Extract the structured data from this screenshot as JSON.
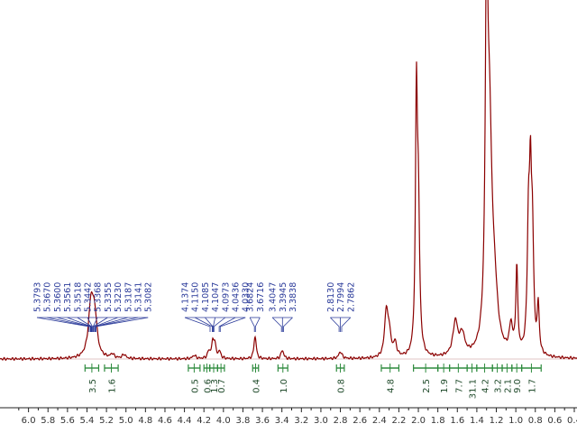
{
  "chart_data": {
    "type": "line",
    "title": "",
    "xlabel": "",
    "ylabel": "",
    "x_reversed": true,
    "xlim": [
      6.2,
      0.4
    ],
    "x_ticks": [
      "6.0",
      "5.8",
      "5.6",
      "5.4",
      "5.2",
      "5.0",
      "4.8",
      "4.6",
      "4.4",
      "4.2",
      "4.0",
      "3.8",
      "3.6",
      "3.4",
      "3.2",
      "3.0",
      "2.8",
      "2.6",
      "2.4",
      "2.2",
      "2.0",
      "1.8",
      "1.6",
      "1.4",
      "1.2",
      "1.0",
      "0.8",
      "0.6",
      "0.4"
    ],
    "ylim": [
      0,
      1
    ],
    "grid": false,
    "colors": {
      "spectrum": "#8b0000",
      "peak_labels": "#2b3b9a",
      "integrals": "#2e8b3e",
      "baseline": "#bbbbbb"
    },
    "spectrum_peaks": [
      {
        "x": 5.36,
        "height": 0.14,
        "width": 0.03
      },
      {
        "x": 5.33,
        "height": 0.09,
        "width": 0.03
      },
      {
        "x": 5.31,
        "height": 0.04,
        "width": 0.02
      },
      {
        "x": 5.14,
        "height": 0.012,
        "width": 0.02
      },
      {
        "x": 5.02,
        "height": 0.012,
        "width": 0.02
      },
      {
        "x": 4.3,
        "height": 0.01,
        "width": 0.02
      },
      {
        "x": 4.15,
        "height": 0.02,
        "width": 0.015
      },
      {
        "x": 4.11,
        "height": 0.04,
        "width": 0.015
      },
      {
        "x": 4.09,
        "height": 0.04,
        "width": 0.015
      },
      {
        "x": 4.04,
        "height": 0.02,
        "width": 0.015
      },
      {
        "x": 3.68,
        "height": 0.04,
        "width": 0.012
      },
      {
        "x": 3.67,
        "height": 0.035,
        "width": 0.012
      },
      {
        "x": 3.4,
        "height": 0.015,
        "width": 0.015
      },
      {
        "x": 3.39,
        "height": 0.012,
        "width": 0.015
      },
      {
        "x": 2.8,
        "height": 0.02,
        "width": 0.02
      },
      {
        "x": 2.33,
        "height": 0.13,
        "width": 0.02
      },
      {
        "x": 2.3,
        "height": 0.07,
        "width": 0.02
      },
      {
        "x": 2.24,
        "height": 0.04,
        "width": 0.02
      },
      {
        "x": 2.02,
        "height": 0.72,
        "width": 0.012
      },
      {
        "x": 2.0,
        "height": 0.4,
        "width": 0.015
      },
      {
        "x": 1.62,
        "height": 0.1,
        "width": 0.03
      },
      {
        "x": 1.55,
        "height": 0.06,
        "width": 0.03
      },
      {
        "x": 1.3,
        "height": 1.0,
        "width": 0.015
      },
      {
        "x": 1.27,
        "height": 0.6,
        "width": 0.03
      },
      {
        "x": 1.22,
        "height": 0.15,
        "width": 0.04
      },
      {
        "x": 1.05,
        "height": 0.08,
        "width": 0.02
      },
      {
        "x": 0.99,
        "height": 0.25,
        "width": 0.012
      },
      {
        "x": 0.87,
        "height": 0.36,
        "width": 0.015
      },
      {
        "x": 0.85,
        "height": 0.4,
        "width": 0.012
      },
      {
        "x": 0.83,
        "height": 0.33,
        "width": 0.015
      },
      {
        "x": 0.77,
        "height": 0.14,
        "width": 0.012
      }
    ],
    "peak_labels": [
      {
        "group": 1,
        "values": [
          "5.3793",
          "5.3670",
          "5.3600",
          "5.3561",
          "5.3518",
          "5.3442",
          "5.3368",
          "5.3355",
          "5.3230",
          "5.3187",
          "5.3141",
          "5.3082"
        ]
      },
      {
        "group": 2,
        "values": [
          "4.1374",
          "4.1150",
          "4.1085",
          "4.1047",
          "4.0973",
          "4.0436",
          "4.0330"
        ]
      },
      {
        "group": 3,
        "values": [
          "3.6824",
          "3.6716"
        ]
      },
      {
        "group": 4,
        "values": [
          "3.4047",
          "3.3945",
          "3.3838"
        ]
      },
      {
        "group": 5,
        "values": [
          "2.8130",
          "2.7994",
          "2.7862"
        ]
      }
    ],
    "integrals": [
      {
        "from": 5.42,
        "to": 5.28,
        "value": "3.5"
      },
      {
        "from": 5.22,
        "to": 5.08,
        "value": "1.6"
      },
      {
        "from": 4.36,
        "to": 4.24,
        "value": "0.5"
      },
      {
        "from": 4.2,
        "to": 4.14,
        "value": "0.6"
      },
      {
        "from": 4.14,
        "to": 4.06,
        "value": "1.3"
      },
      {
        "from": 4.06,
        "to": 3.99,
        "value": "0.7"
      },
      {
        "from": 3.7,
        "to": 3.64,
        "value": "0.4"
      },
      {
        "from": 3.44,
        "to": 3.34,
        "value": "1.0"
      },
      {
        "from": 2.84,
        "to": 2.76,
        "value": "0.8"
      },
      {
        "from": 2.38,
        "to": 2.2,
        "value": "4.8"
      },
      {
        "from": 2.05,
        "to": 1.8,
        "value": "2.5"
      },
      {
        "from": 1.8,
        "to": 1.68,
        "value": "1.9"
      },
      {
        "from": 1.68,
        "to": 1.5,
        "value": "7.7"
      },
      {
        "from": 1.5,
        "to": 1.4,
        "value": "31.1"
      },
      {
        "from": 1.4,
        "to": 1.24,
        "value": "4.2"
      },
      {
        "from": 1.24,
        "to": 1.14,
        "value": "3.2"
      },
      {
        "from": 1.14,
        "to": 1.04,
        "value": "2.1"
      },
      {
        "from": 1.04,
        "to": 0.94,
        "value": "9.0"
      },
      {
        "from": 0.94,
        "to": 0.74,
        "value": "1.7"
      }
    ]
  }
}
